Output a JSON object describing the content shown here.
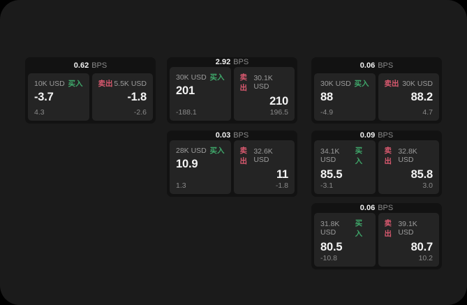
{
  "page": {
    "bps_unit": "BPS",
    "buy_label": "买入",
    "sell_label": "卖出"
  },
  "colors": {
    "page_bg": "#1b1b1b",
    "card_bg": "#121212",
    "panel_bg": "#242424",
    "buy": "#3fa76a",
    "sell": "#d9596f"
  },
  "cards": [
    {
      "bps": "0.62",
      "buy": {
        "amount": "10K USD",
        "value": "-3.7",
        "sub": "4.3"
      },
      "sell": {
        "amount": "5.5K USD",
        "value": "-1.8",
        "sub": "-2.6"
      }
    },
    {
      "bps": "2.92",
      "buy": {
        "amount": "30K USD",
        "value": "201",
        "sub": "-188.1"
      },
      "sell": {
        "amount": "30.1K USD",
        "value": "210",
        "sub": "196.5"
      }
    },
    {
      "bps": "0.06",
      "buy": {
        "amount": "30K USD",
        "value": "88",
        "sub": "-4.9"
      },
      "sell": {
        "amount": "30K USD",
        "value": "88.2",
        "sub": "4.7"
      }
    },
    {
      "bps": "0.03",
      "buy": {
        "amount": "28K USD",
        "value": "10.9",
        "sub": "1.3"
      },
      "sell": {
        "amount": "32.6K USD",
        "value": "11",
        "sub": "-1.8"
      }
    },
    {
      "bps": "0.09",
      "buy": {
        "amount": "34.1K USD",
        "value": "85.5",
        "sub": "-3.1"
      },
      "sell": {
        "amount": "32.8K USD",
        "value": "85.8",
        "sub": "3.0"
      }
    },
    {
      "bps": "0.06",
      "buy": {
        "amount": "31.8K USD",
        "value": "80.5",
        "sub": "-10.8"
      },
      "sell": {
        "amount": "39.1K USD",
        "value": "80.7",
        "sub": "10.2"
      }
    }
  ]
}
